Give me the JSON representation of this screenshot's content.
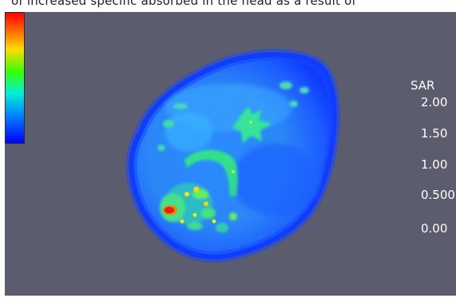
{
  "caption": "of increased specific absorbed in the head as a result of",
  "legend": {
    "title": "SAR",
    "ticks": [
      "2.00",
      "1.50",
      "1.00",
      "0.500",
      "0.00"
    ],
    "gradient": [
      "#ff0000",
      "#ff8c00",
      "#ffff00",
      "#00ff00",
      "#00ffff",
      "#0064ff",
      "#0000ff"
    ]
  },
  "colors": {
    "background": "#5b5c6e",
    "tissue_low": "#1450ff",
    "tissue_mid": "#2f9bff",
    "tissue_high": "#24e07a",
    "hotspot": "#ff2a00"
  }
}
